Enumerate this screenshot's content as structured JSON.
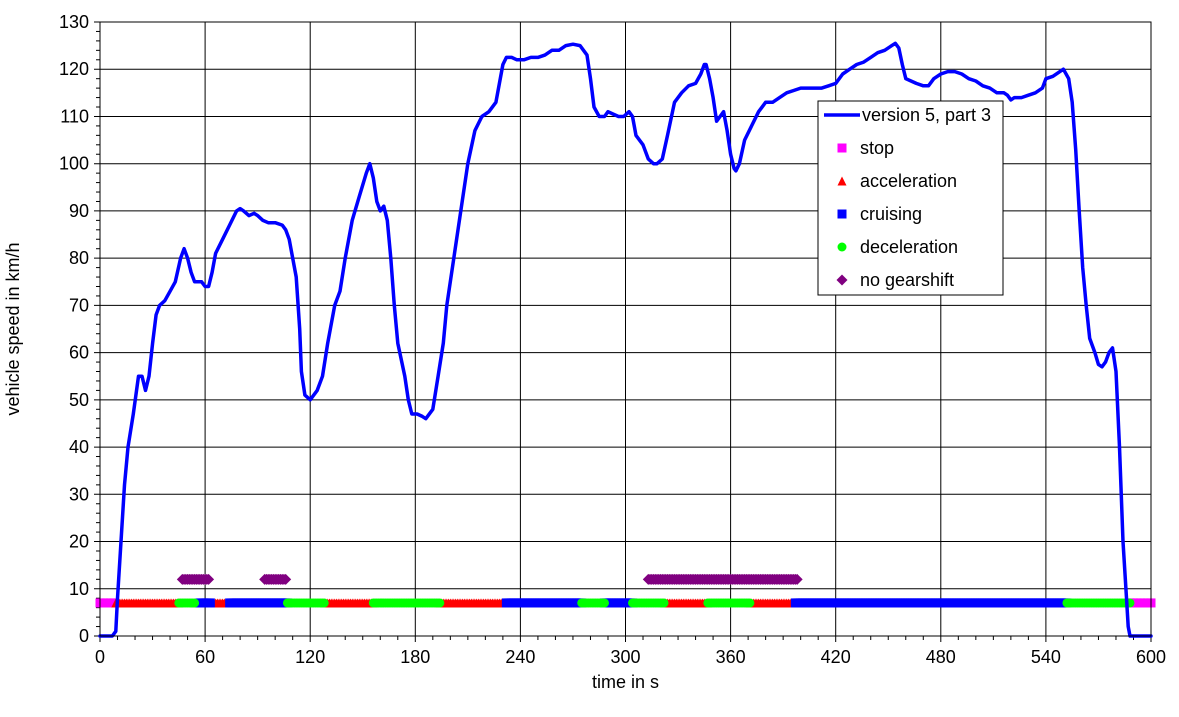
{
  "chart_data": {
    "type": "line",
    "xlabel": "time in s",
    "ylabel": "vehicle speed in km/h",
    "xlim": [
      0,
      600
    ],
    "ylim": [
      0,
      130
    ],
    "x_ticks": [
      0,
      60,
      120,
      180,
      240,
      300,
      360,
      420,
      480,
      540,
      600
    ],
    "y_ticks": [
      0,
      10,
      20,
      30,
      40,
      50,
      60,
      70,
      80,
      90,
      100,
      110,
      120,
      130
    ],
    "grid": true,
    "legend_position": "right, upper middle",
    "series": [
      {
        "name": "version 5, part 3",
        "color": "#0000FF",
        "marker": "line",
        "points": [
          [
            0,
            0
          ],
          [
            7,
            0
          ],
          [
            9,
            1
          ],
          [
            10,
            8
          ],
          [
            12,
            20
          ],
          [
            14,
            32
          ],
          [
            16,
            40
          ],
          [
            19,
            47
          ],
          [
            22,
            55
          ],
          [
            24,
            55
          ],
          [
            26,
            52
          ],
          [
            28,
            55
          ],
          [
            30,
            62
          ],
          [
            32,
            68
          ],
          [
            34,
            70
          ],
          [
            37,
            71
          ],
          [
            40,
            73
          ],
          [
            43,
            75
          ],
          [
            46,
            80
          ],
          [
            48,
            82
          ],
          [
            50,
            80
          ],
          [
            52,
            77
          ],
          [
            54,
            75
          ],
          [
            56,
            75
          ],
          [
            58,
            75
          ],
          [
            60,
            74
          ],
          [
            62,
            74
          ],
          [
            64,
            77
          ],
          [
            66,
            81
          ],
          [
            70,
            84
          ],
          [
            74,
            87
          ],
          [
            78,
            90
          ],
          [
            80,
            90.5
          ],
          [
            82,
            90
          ],
          [
            85,
            89
          ],
          [
            88,
            89.5
          ],
          [
            90,
            89
          ],
          [
            93,
            88
          ],
          [
            96,
            87.5
          ],
          [
            100,
            87.5
          ],
          [
            104,
            87
          ],
          [
            106,
            86
          ],
          [
            108,
            84
          ],
          [
            110,
            80
          ],
          [
            112,
            76
          ],
          [
            114,
            65
          ],
          [
            115,
            56
          ],
          [
            117,
            51
          ],
          [
            120,
            50
          ],
          [
            124,
            52
          ],
          [
            127,
            55
          ],
          [
            130,
            62
          ],
          [
            134,
            70
          ],
          [
            137,
            73
          ],
          [
            140,
            80
          ],
          [
            144,
            88
          ],
          [
            148,
            93
          ],
          [
            152,
            98
          ],
          [
            154,
            100
          ],
          [
            156,
            97
          ],
          [
            158,
            92
          ],
          [
            160,
            90
          ],
          [
            162,
            91
          ],
          [
            164,
            88
          ],
          [
            166,
            80
          ],
          [
            168,
            70
          ],
          [
            170,
            62
          ],
          [
            174,
            55
          ],
          [
            176,
            50
          ],
          [
            178,
            47
          ],
          [
            181,
            47
          ],
          [
            184,
            46.5
          ],
          [
            186,
            46
          ],
          [
            190,
            48
          ],
          [
            193,
            55
          ],
          [
            196,
            62
          ],
          [
            198,
            70
          ],
          [
            202,
            80
          ],
          [
            206,
            90
          ],
          [
            210,
            100
          ],
          [
            214,
            107
          ],
          [
            218,
            110
          ],
          [
            222,
            111
          ],
          [
            226,
            113
          ],
          [
            230,
            121
          ],
          [
            232,
            122.5
          ],
          [
            235,
            122.5
          ],
          [
            238,
            122
          ],
          [
            242,
            122
          ],
          [
            246,
            122.5
          ],
          [
            250,
            122.5
          ],
          [
            254,
            123
          ],
          [
            258,
            124
          ],
          [
            262,
            124
          ],
          [
            266,
            125
          ],
          [
            270,
            125.3
          ],
          [
            274,
            125
          ],
          [
            278,
            123
          ],
          [
            280,
            118
          ],
          [
            282,
            112
          ],
          [
            285,
            110
          ],
          [
            288,
            110
          ],
          [
            290,
            111
          ],
          [
            293,
            110.5
          ],
          [
            296,
            110
          ],
          [
            299,
            110
          ],
          [
            302,
            111
          ],
          [
            304,
            110
          ],
          [
            306,
            106
          ],
          [
            310,
            104
          ],
          [
            313,
            101
          ],
          [
            316,
            100
          ],
          [
            318,
            100
          ],
          [
            321,
            101
          ],
          [
            324,
            106
          ],
          [
            328,
            113
          ],
          [
            332,
            115
          ],
          [
            336,
            116.5
          ],
          [
            340,
            117
          ],
          [
            343,
            119
          ],
          [
            345,
            121
          ],
          [
            346,
            121
          ],
          [
            348,
            118
          ],
          [
            350,
            114
          ],
          [
            352,
            109
          ],
          [
            354,
            110
          ],
          [
            356,
            111
          ],
          [
            358,
            107
          ],
          [
            360,
            102
          ],
          [
            362,
            99
          ],
          [
            363,
            98.5
          ],
          [
            365,
            100
          ],
          [
            368,
            105
          ],
          [
            372,
            108
          ],
          [
            376,
            111
          ],
          [
            380,
            113
          ],
          [
            384,
            113
          ],
          [
            388,
            114
          ],
          [
            392,
            115
          ],
          [
            396,
            115.5
          ],
          [
            400,
            116
          ],
          [
            404,
            116
          ],
          [
            408,
            116
          ],
          [
            412,
            116
          ],
          [
            416,
            116.5
          ],
          [
            420,
            117
          ],
          [
            424,
            119
          ],
          [
            428,
            120
          ],
          [
            432,
            121
          ],
          [
            436,
            121.5
          ],
          [
            440,
            122.5
          ],
          [
            444,
            123.5
          ],
          [
            448,
            124
          ],
          [
            452,
            125
          ],
          [
            454,
            125.5
          ],
          [
            456,
            124.5
          ],
          [
            458,
            121
          ],
          [
            460,
            118
          ],
          [
            463,
            117.5
          ],
          [
            466,
            117
          ],
          [
            470,
            116.5
          ],
          [
            473,
            116.5
          ],
          [
            476,
            118
          ],
          [
            480,
            119
          ],
          [
            484,
            119.5
          ],
          [
            488,
            119.5
          ],
          [
            492,
            119
          ],
          [
            496,
            118
          ],
          [
            500,
            117.5
          ],
          [
            504,
            116.5
          ],
          [
            508,
            116
          ],
          [
            512,
            115
          ],
          [
            516,
            115
          ],
          [
            518,
            114.5
          ],
          [
            520,
            113.5
          ],
          [
            522,
            114
          ],
          [
            526,
            114
          ],
          [
            530,
            114.5
          ],
          [
            534,
            115
          ],
          [
            538,
            116
          ],
          [
            540,
            118
          ],
          [
            544,
            118.5
          ],
          [
            548,
            119.5
          ],
          [
            550,
            120
          ],
          [
            553,
            118
          ],
          [
            555,
            113
          ],
          [
            557,
            103
          ],
          [
            559,
            90
          ],
          [
            561,
            78
          ],
          [
            563,
            70
          ],
          [
            565,
            63
          ],
          [
            568,
            60
          ],
          [
            570,
            57.5
          ],
          [
            572,
            57
          ],
          [
            574,
            58
          ],
          [
            576,
            60
          ],
          [
            578,
            61
          ],
          [
            580,
            56
          ],
          [
            582,
            40
          ],
          [
            584,
            20
          ],
          [
            586,
            8
          ],
          [
            587,
            2
          ],
          [
            588,
            0
          ],
          [
            600,
            0
          ]
        ]
      },
      {
        "name": "stop",
        "color": "#FF00FF",
        "marker": "square",
        "points": [
          [
            0,
            7
          ],
          [
            2,
            7
          ],
          [
            4,
            7
          ],
          [
            6,
            7
          ],
          [
            8,
            7
          ],
          [
            588,
            7
          ],
          [
            590,
            7
          ],
          [
            592,
            7
          ],
          [
            594,
            7
          ],
          [
            596,
            7
          ],
          [
            598,
            7
          ],
          [
            600,
            7
          ]
        ]
      },
      {
        "name": "acceleration",
        "color": "#FF0000",
        "marker": "triangle",
        "ranges": [
          [
            9,
            45
          ],
          [
            54,
            57
          ],
          [
            63,
            74
          ],
          [
            128,
            156
          ],
          [
            194,
            232
          ],
          [
            322,
            347
          ],
          [
            371,
            397
          ]
        ]
      },
      {
        "name": "cruising",
        "color": "#0000FF",
        "marker": "square",
        "ranges": [
          [
            57,
            63
          ],
          [
            74,
            107
          ],
          [
            232,
            275
          ],
          [
            288,
            304
          ],
          [
            397,
            552
          ]
        ]
      },
      {
        "name": "deceleration",
        "color": "#00FF00",
        "marker": "circle",
        "ranges": [
          [
            45,
            54
          ],
          [
            107,
            128
          ],
          [
            156,
            194
          ],
          [
            275,
            288
          ],
          [
            304,
            322
          ],
          [
            347,
            371
          ],
          [
            552,
            588
          ]
        ]
      },
      {
        "name": "no gearshift",
        "color": "#800080",
        "marker": "diamond",
        "y": 12,
        "ranges": [
          [
            47,
            62
          ],
          [
            94,
            106
          ],
          [
            313,
            398
          ]
        ]
      }
    ]
  }
}
